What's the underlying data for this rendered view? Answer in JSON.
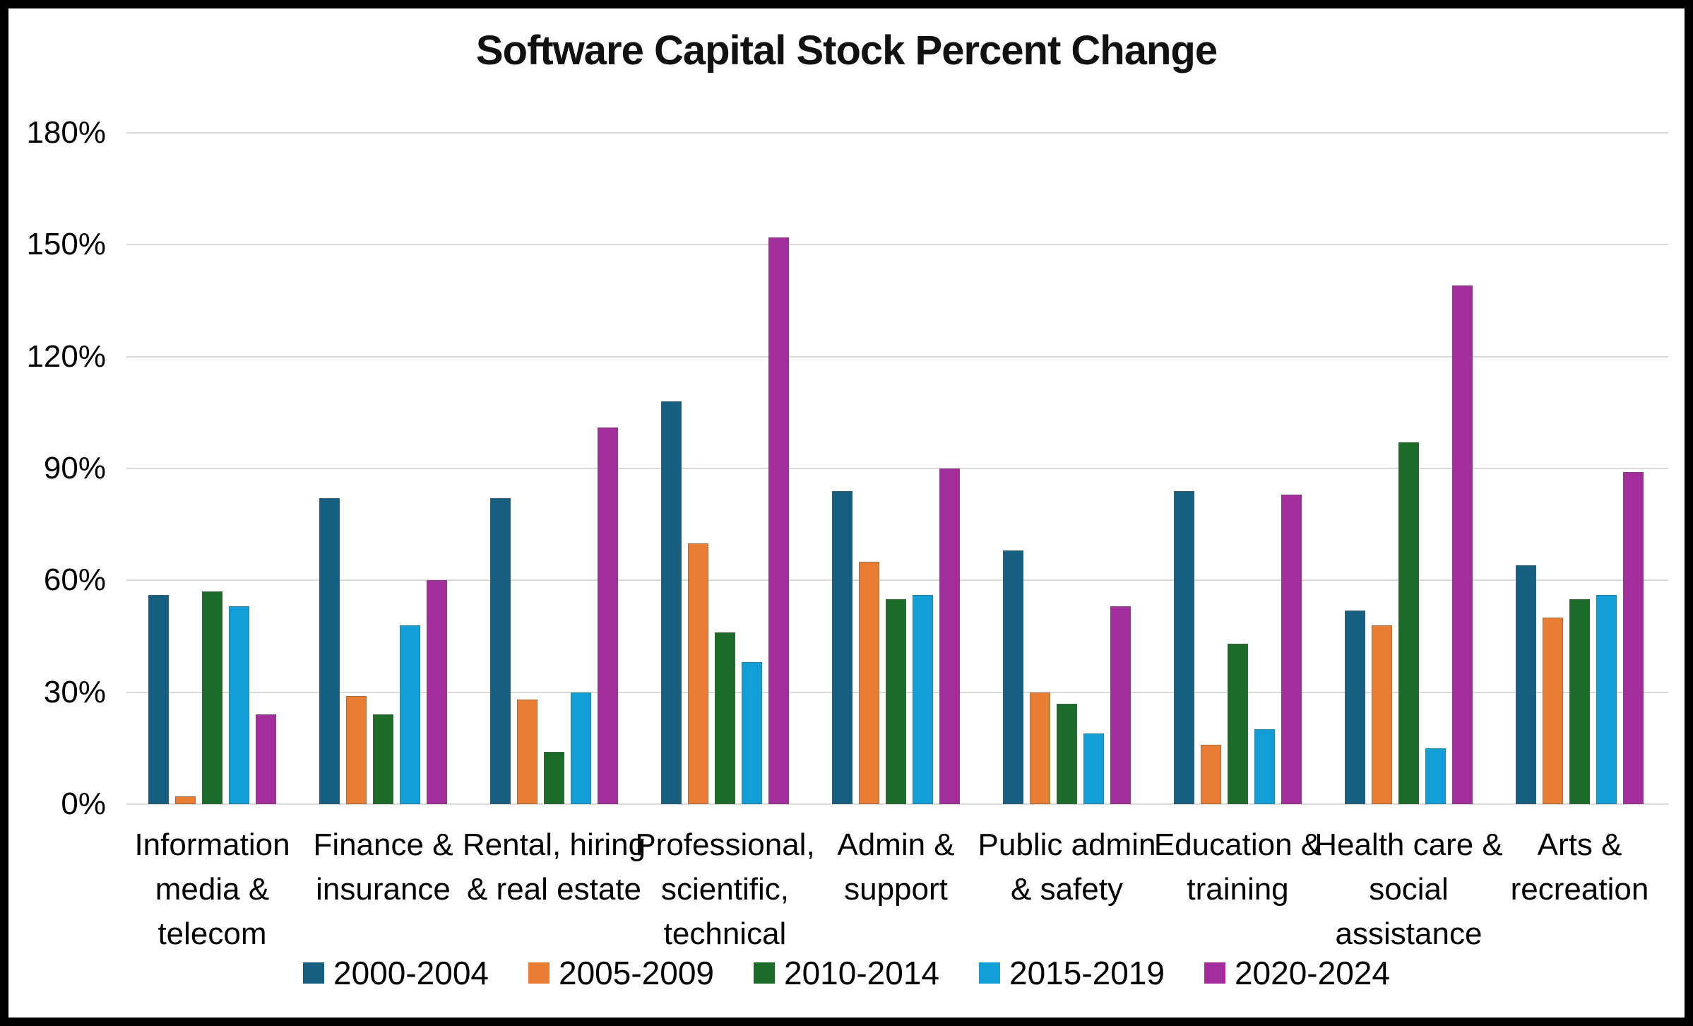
{
  "title": "Software Capital Stock Percent Change",
  "chart_data": {
    "type": "bar",
    "title": "Software Capital Stock Percent Change",
    "categories": [
      "Information media & telecom",
      "Finance & insurance",
      "Rental, hiring & real estate",
      "Professional, scientific, technical",
      "Admin & support",
      "Public admin & safety",
      "Education & training",
      "Health care & social assistance",
      "Arts & recreation"
    ],
    "category_label_lines": [
      [
        "Information",
        "media &",
        "telecom"
      ],
      [
        "Finance &",
        "insurance"
      ],
      [
        "Rental, hiring",
        "& real estate"
      ],
      [
        "Professional,",
        "scientific,",
        "technical"
      ],
      [
        "Admin &",
        "support"
      ],
      [
        "Public admin",
        "& safety"
      ],
      [
        "Education &",
        "training"
      ],
      [
        "Health care &",
        "social",
        "assistance"
      ],
      [
        "Arts &",
        "recreation"
      ]
    ],
    "series": [
      {
        "name": "2000-2004",
        "color": "#175F80",
        "values": [
          56,
          82,
          82,
          108,
          84,
          68,
          84,
          52,
          64
        ]
      },
      {
        "name": "2005-2009",
        "color": "#E87D33",
        "values": [
          2,
          29,
          28,
          70,
          65,
          30,
          16,
          48,
          50
        ]
      },
      {
        "name": "2010-2014",
        "color": "#1D6B28",
        "values": [
          57,
          24,
          14,
          46,
          55,
          27,
          43,
          97,
          55
        ]
      },
      {
        "name": "2015-2019",
        "color": "#129FD8",
        "values": [
          53,
          48,
          30,
          38,
          56,
          19,
          20,
          15,
          56
        ]
      },
      {
        "name": "2020-2024",
        "color": "#A32E9B",
        "values": [
          24,
          60,
          101,
          152,
          90,
          53,
          83,
          139,
          89
        ]
      }
    ],
    "xlabel": "",
    "ylabel": "",
    "ylim": [
      0,
      180
    ],
    "ytick_step": 30,
    "yticks": [
      "0%",
      "30%",
      "60%",
      "90%",
      "120%",
      "150%",
      "180%"
    ],
    "grid": true,
    "legend_position": "bottom",
    "colors": {
      "gridline": "#d9d9d9",
      "background": "#ffffff",
      "frame": "#000000",
      "text": "#000000"
    }
  }
}
